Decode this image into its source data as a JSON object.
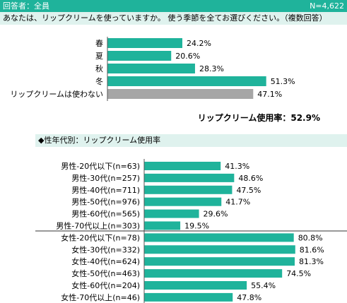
{
  "header": {
    "respondent": "回答者：全員",
    "n": "N=4,622"
  },
  "question": "あなたは、リップクリームを使っていますか。 使う季節を全てお選びください。（複数回答）",
  "colors": {
    "accent": "#1fb39b",
    "bar": "#1fb39b",
    "bar_gray": "#a6a6a6",
    "band": "#dff2ee"
  },
  "usage_rate": "リップクリーム使用率：52.9%",
  "section_title": "◆性年代別：リップクリーム使用率",
  "chart_data": [
    {
      "type": "bar",
      "orientation": "horizontal",
      "categories": [
        "春",
        "夏",
        "秋",
        "冬",
        "リップクリームは使わない"
      ],
      "values": [
        24.2,
        20.6,
        28.3,
        51.3,
        47.1
      ],
      "value_labels": [
        "24.2%",
        "20.6%",
        "28.3%",
        "51.3%",
        "47.1%"
      ],
      "bar_colors": [
        "#1fb39b",
        "#1fb39b",
        "#1fb39b",
        "#1fb39b",
        "#a6a6a6"
      ],
      "xlim": [
        0,
        100
      ]
    },
    {
      "type": "bar",
      "orientation": "horizontal",
      "categories": [
        "男性-20代以下(n=63)",
        "男性-30代(n=257)",
        "男性-40代(n=711)",
        "男性-50代(n=976)",
        "男性-60代(n=565)",
        "男性-70代以上(n=303)",
        "女性-20代以下(n=78)",
        "女性-30代(n=332)",
        "女性-40代(n=624)",
        "女性-50代(n=463)",
        "女性-60代(n=204)",
        "女性-70代以上(n=46)"
      ],
      "values": [
        41.3,
        48.6,
        47.5,
        41.7,
        29.6,
        19.5,
        80.8,
        81.6,
        81.3,
        74.5,
        55.4,
        47.8
      ],
      "value_labels": [
        "41.3%",
        "48.6%",
        "47.5%",
        "41.7%",
        "29.6%",
        "19.5%",
        "80.8%",
        "81.6%",
        "81.3%",
        "74.5%",
        "55.4%",
        "47.8%"
      ],
      "xlim": [
        0,
        100
      ]
    }
  ]
}
